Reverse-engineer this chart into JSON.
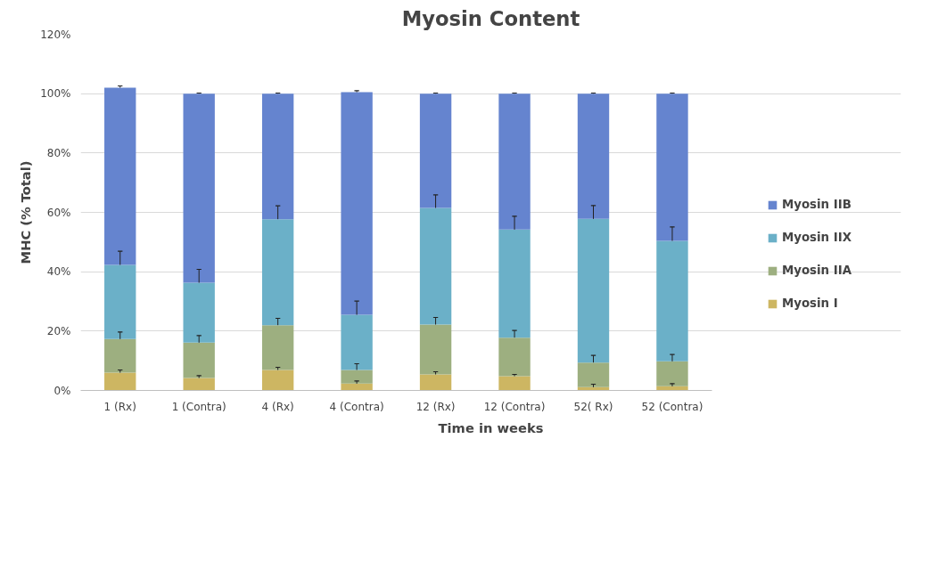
{
  "chart_data": {
    "type": "bar",
    "stacked": true,
    "title": "Myosin Content",
    "xlabel": "Time in weeks",
    "ylabel": "MHC (% Total)",
    "categories": [
      "1 (Rx)",
      "1 (Contra)",
      "4 (Rx)",
      "4 (Contra)",
      "12 (Rx)",
      "12 (Contra)",
      "52( Rx)",
      "52 (Contra)"
    ],
    "series": [
      {
        "name": "Myosin I",
        "color": "#cdb662",
        "values": [
          6.0,
          4.2,
          6.9,
          2.3,
          5.4,
          4.8,
          1.1,
          1.4
        ],
        "errors": [
          [
            6.0,
            6.9
          ],
          [
            4.2,
            5.0
          ],
          [
            6.9,
            7.8
          ],
          [
            2.3,
            3.2
          ],
          [
            5.4,
            6.3
          ],
          [
            4.8,
            5.4
          ],
          [
            1.1,
            2.1
          ],
          [
            1.4,
            2.3
          ]
        ]
      },
      {
        "name": "Myosin IIA",
        "color": "#9daf80",
        "values": [
          11.3,
          11.9,
          15.1,
          4.6,
          16.8,
          13.0,
          8.3,
          8.4
        ],
        "errors": [
          [
            17.3,
            19.7
          ],
          [
            16.1,
            18.5
          ],
          [
            22.0,
            24.3
          ],
          [
            6.9,
            9.0
          ],
          [
            22.2,
            24.6
          ],
          [
            17.8,
            20.2
          ],
          [
            9.4,
            11.8
          ],
          [
            9.8,
            12.1
          ]
        ]
      },
      {
        "name": "Myosin IIX",
        "color": "#6bb0c8",
        "values": [
          25.0,
          20.2,
          35.7,
          18.6,
          39.3,
          36.4,
          48.4,
          40.6
        ],
        "errors": [
          [
            42.3,
            46.9
          ],
          [
            36.3,
            40.8
          ],
          [
            57.7,
            62.2
          ],
          [
            25.5,
            30.1
          ],
          [
            61.5,
            65.9
          ],
          [
            54.2,
            58.7
          ],
          [
            57.8,
            62.3
          ],
          [
            50.4,
            55.1
          ]
        ]
      },
      {
        "name": "Myosin IIB",
        "color": "#6584cf",
        "values": [
          59.7,
          63.7,
          42.3,
          75.0,
          38.5,
          45.8,
          42.2,
          49.6
        ],
        "errors": [
          [
            102.0,
            102.6
          ],
          [
            100.0,
            100.2
          ],
          [
            100.0,
            100.2
          ],
          [
            100.5,
            101.0
          ],
          [
            100.0,
            100.2
          ],
          [
            100.0,
            100.2
          ],
          [
            100.0,
            100.2
          ],
          [
            100.0,
            100.2
          ]
        ]
      }
    ],
    "ylim": [
      0,
      120
    ],
    "yticks": [
      {
        "value": 0,
        "label": "0%"
      },
      {
        "value": 20,
        "label": "20%"
      },
      {
        "value": 40,
        "label": "40%"
      },
      {
        "value": 60,
        "label": "60%"
      },
      {
        "value": 80,
        "label": "80%"
      },
      {
        "value": 100,
        "label": "100%"
      },
      {
        "value": 120,
        "label": "120%"
      }
    ],
    "grid": "y",
    "legend": "right"
  }
}
